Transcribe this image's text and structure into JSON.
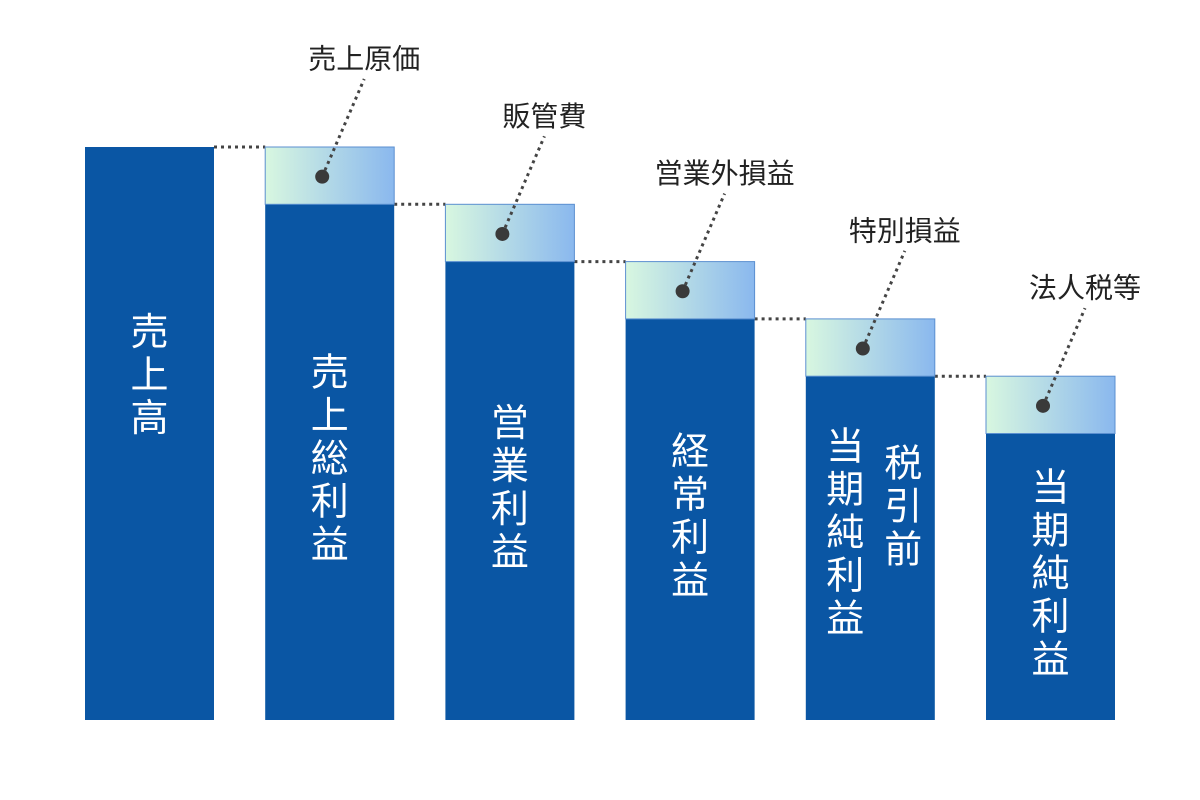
{
  "chart_data": {
    "type": "bar",
    "subtype": "waterfall",
    "bars": [
      {
        "label": "売上高",
        "value": 100
      },
      {
        "label": "売上総利益",
        "value": 90,
        "deduction": {
          "label": "売上原価",
          "value": 10
        }
      },
      {
        "label": "営業利益",
        "value": 80,
        "deduction": {
          "label": "販管費",
          "value": 10
        }
      },
      {
        "label": "経常利益",
        "value": 70,
        "deduction": {
          "label": "営業外損益",
          "value": 10
        }
      },
      {
        "label": "税引前当期純利益",
        "label_columns": [
          "税引前",
          "当期純利益"
        ],
        "value": 60,
        "deduction": {
          "label": "特別損益",
          "value": 10
        }
      },
      {
        "label": "当期純利益",
        "value": 50,
        "deduction": {
          "label": "法人税等",
          "value": 10
        }
      }
    ],
    "title": "",
    "xlabel": "",
    "ylabel": "",
    "ylim": [
      0,
      100
    ],
    "grid": false,
    "legend": "none"
  },
  "colors": {
    "bar": "#0a56a4",
    "deduction_gradient": [
      "#d8f7e0",
      "#8ab8ee"
    ],
    "deduction_border": "#5b8fd0",
    "connector": "#444444"
  }
}
